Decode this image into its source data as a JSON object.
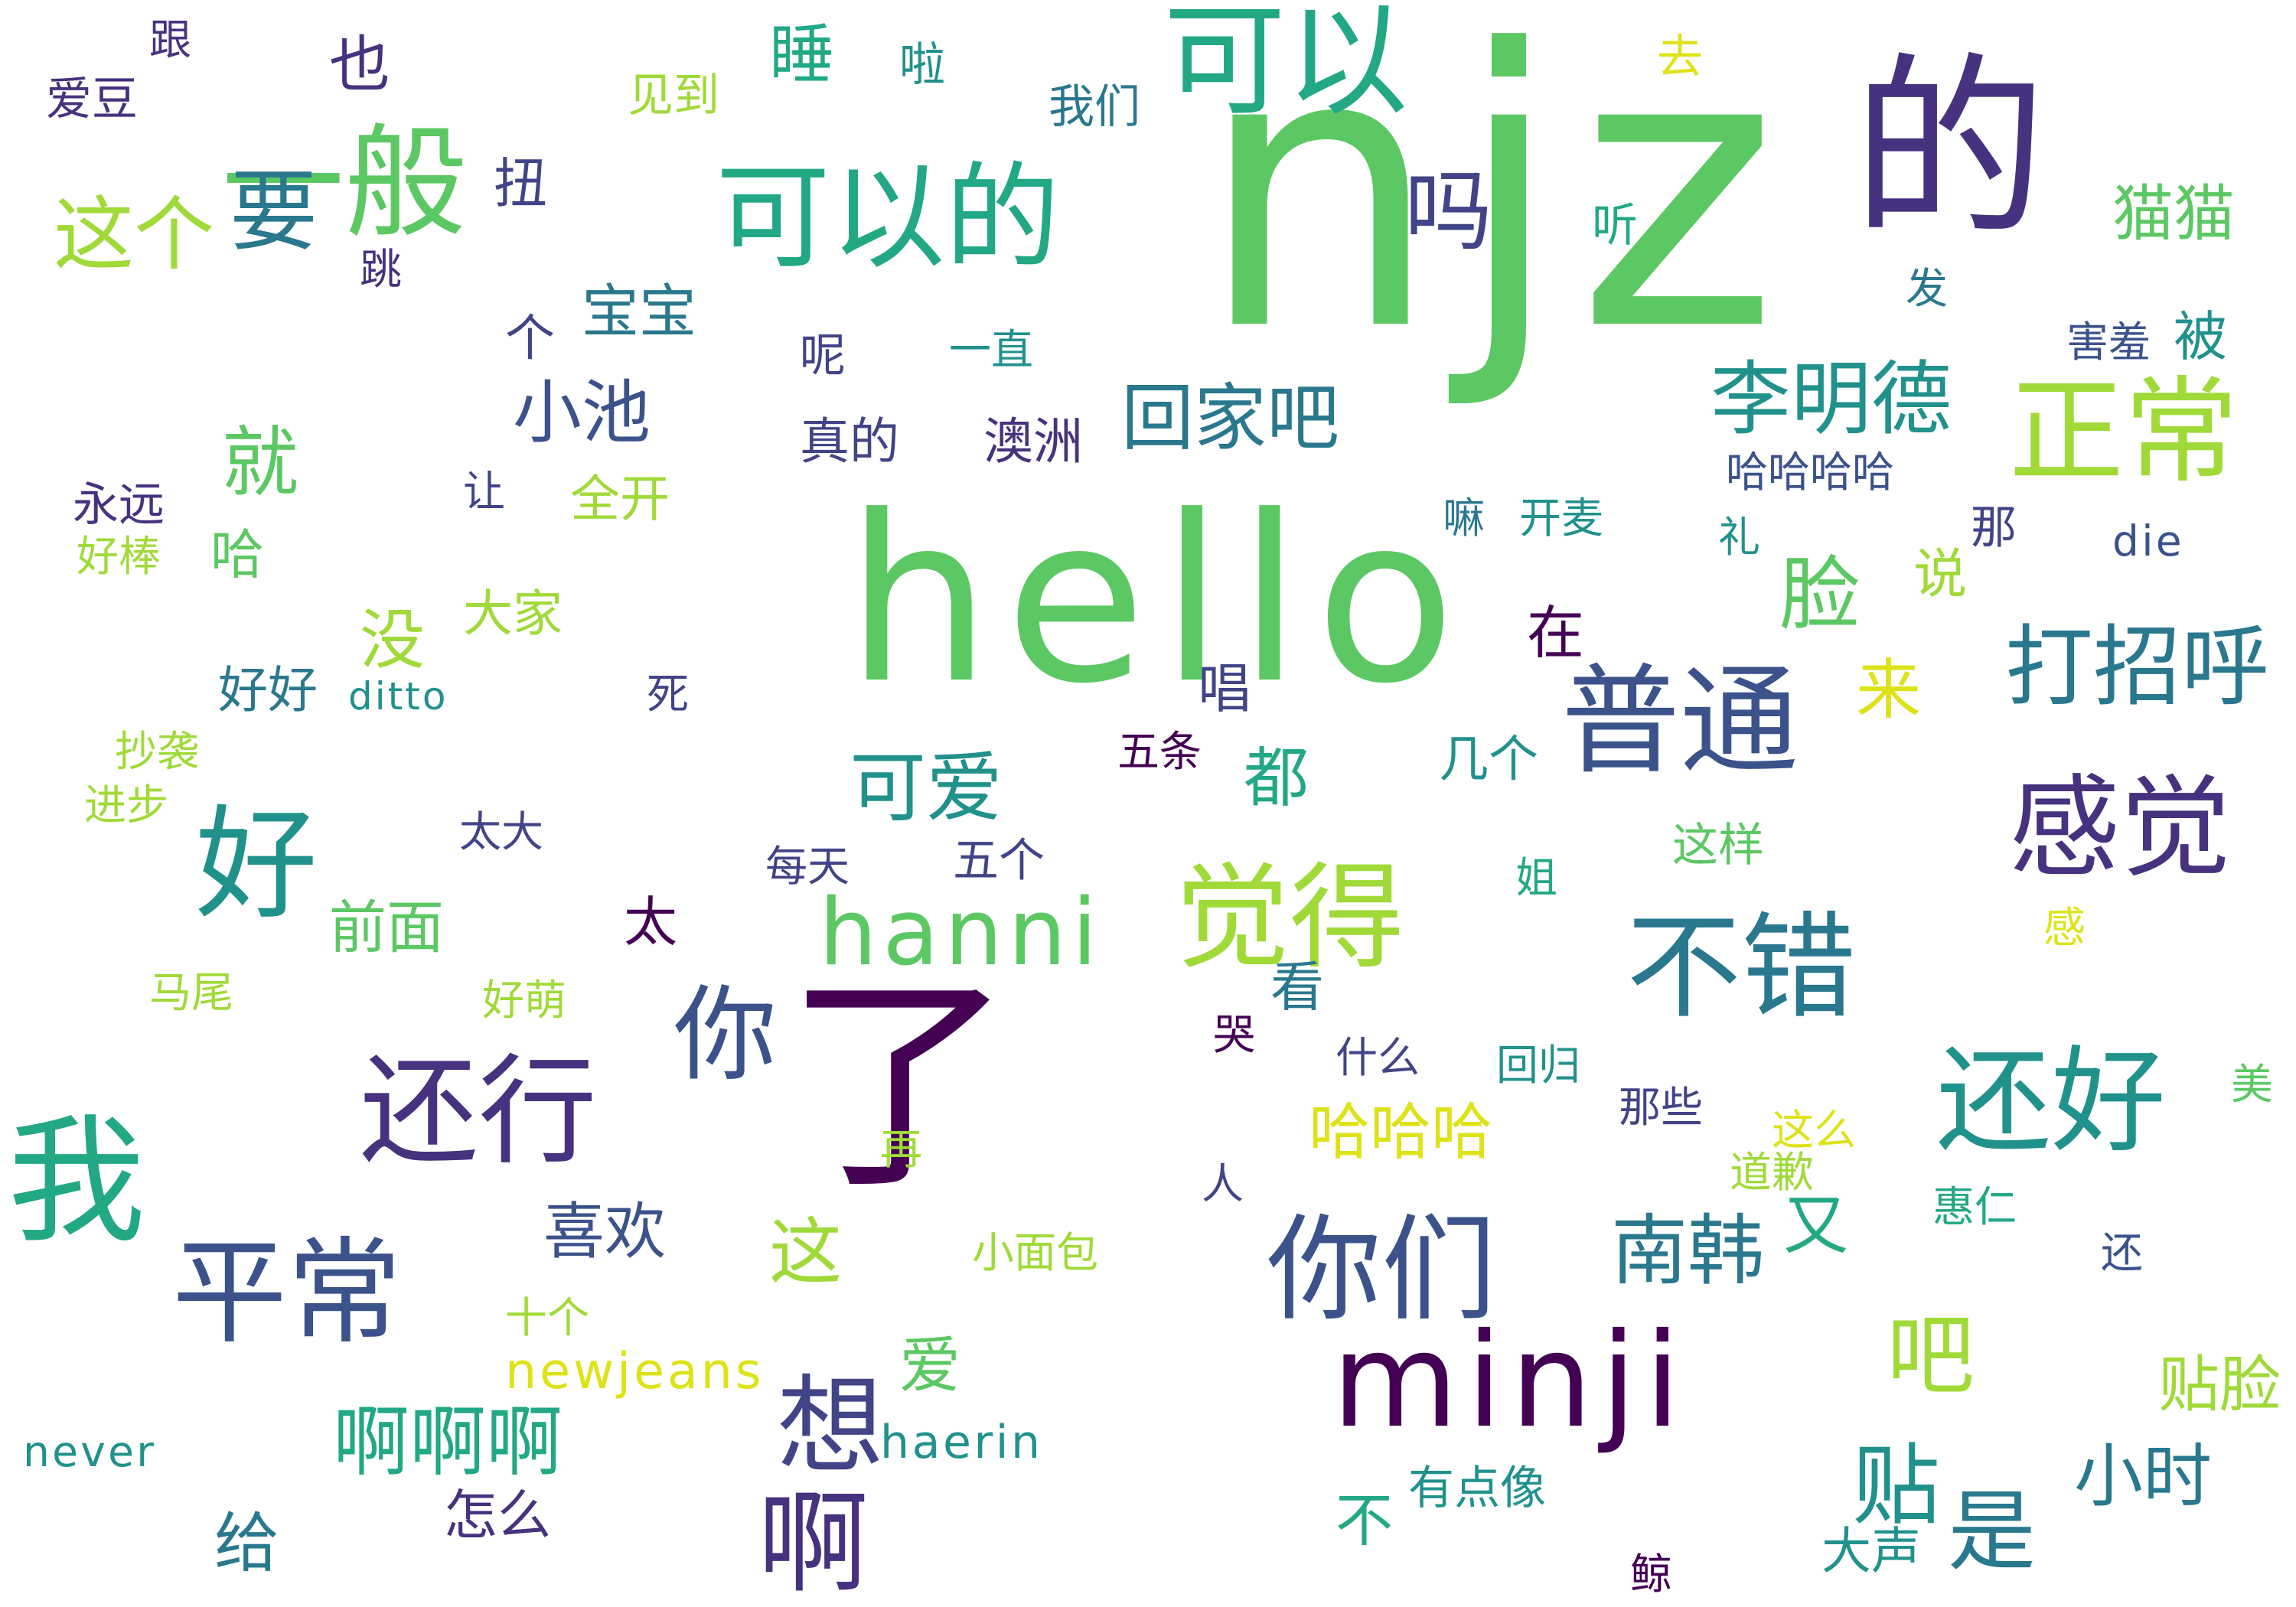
{
  "palette": {
    "yellow": "#dde318",
    "lime": "#a0da39",
    "green": "#5cc863",
    "teal_green": "#22a884",
    "teal": "#21918c",
    "steel": "#2a788e",
    "blue": "#3b528b",
    "indigo": "#414487",
    "purple": "#46327e",
    "deep_purple": "#440154"
  },
  "words": [
    {
      "text": "njz",
      "color": "#5cc863"
    },
    {
      "text": "hello",
      "color": "#5cc863"
    },
    {
      "text": "的",
      "color": "#46327e"
    },
    {
      "text": "了",
      "color": "#440154"
    },
    {
      "text": "可以",
      "color": "#22a884"
    },
    {
      "text": "一般",
      "color": "#5cc863"
    },
    {
      "text": "可以的",
      "color": "#22a884"
    },
    {
      "text": "正常",
      "color": "#a0da39"
    },
    {
      "text": "我",
      "color": "#22a884"
    },
    {
      "text": "普通",
      "color": "#3b528b"
    },
    {
      "text": "minji",
      "color": "#440154"
    },
    {
      "text": "平常",
      "color": "#3b528b"
    },
    {
      "text": "还行",
      "color": "#46327e"
    },
    {
      "text": "你们",
      "color": "#3b528b"
    },
    {
      "text": "还好",
      "color": "#21918c"
    },
    {
      "text": "觉得",
      "color": "#a0da39"
    },
    {
      "text": "感觉",
      "color": "#46327e"
    },
    {
      "text": "不错",
      "color": "#2a788e"
    },
    {
      "text": "好",
      "color": "#21918c"
    },
    {
      "text": "hanni",
      "color": "#5cc863"
    },
    {
      "text": "你",
      "color": "#3b528b"
    },
    {
      "text": "打招呼",
      "color": "#2a788e"
    },
    {
      "text": "吗",
      "color": "#414487"
    },
    {
      "text": "李明德",
      "color": "#21918c"
    },
    {
      "text": "啊",
      "color": "#46327e"
    },
    {
      "text": "想",
      "color": "#414487"
    },
    {
      "text": "贴",
      "color": "#21918c"
    },
    {
      "text": "是",
      "color": "#2a788e"
    },
    {
      "text": "吧",
      "color": "#a0da39"
    },
    {
      "text": "这个",
      "color": "#a0da39"
    },
    {
      "text": "要",
      "color": "#2a788e"
    },
    {
      "text": "回家吧",
      "color": "#2a788e"
    },
    {
      "text": "南韩",
      "color": "#2a788e"
    },
    {
      "text": "啊啊啊",
      "color": "#22a884"
    },
    {
      "text": "可爱",
      "color": "#21918c"
    },
    {
      "text": "小池",
      "color": "#3b528b"
    },
    {
      "text": "就",
      "color": "#5cc863"
    },
    {
      "text": "脸",
      "color": "#5cc863"
    },
    {
      "text": "哈哈哈",
      "color": "#dde318"
    },
    {
      "text": "猫猫",
      "color": "#5cc863"
    },
    {
      "text": "小时",
      "color": "#2a788e"
    },
    {
      "text": "贴脸",
      "color": "#a0da39"
    },
    {
      "text": "睡",
      "color": "#22a884"
    },
    {
      "text": "喜欢",
      "color": "#3b528b"
    },
    {
      "text": "宝宝",
      "color": "#2a788e"
    },
    {
      "text": "前面",
      "color": "#5cc863"
    },
    {
      "text": "这",
      "color": "#a0da39"
    },
    {
      "text": "都",
      "color": "#22a884"
    },
    {
      "text": "没",
      "color": "#a0da39"
    },
    {
      "text": "也",
      "color": "#46327e"
    },
    {
      "text": "扭",
      "color": "#414487"
    },
    {
      "text": "又",
      "color": "#22a884"
    },
    {
      "text": "来",
      "color": "#dde318"
    },
    {
      "text": "爱",
      "color": "#5cc863"
    },
    {
      "text": "给",
      "color": "#2a788e"
    },
    {
      "text": "怎么",
      "color": "#46327e"
    },
    {
      "text": "newjeans",
      "color": "#dde318"
    },
    {
      "text": "大声",
      "color": "#21918c"
    },
    {
      "text": "看",
      "color": "#2a788e"
    },
    {
      "text": "被",
      "color": "#21918c"
    },
    {
      "text": "太",
      "color": "#440154"
    },
    {
      "text": "大家",
      "color": "#a0da39"
    },
    {
      "text": "全开",
      "color": "#a0da39"
    },
    {
      "text": "好好",
      "color": "#2a788e"
    },
    {
      "text": "唱",
      "color": "#414487"
    },
    {
      "text": "哈",
      "color": "#5cc863"
    },
    {
      "text": "在",
      "color": "#440154"
    },
    {
      "text": "个",
      "color": "#414487"
    },
    {
      "text": "说",
      "color": "#a0da39"
    },
    {
      "text": "真的",
      "color": "#414487"
    },
    {
      "text": "澳洲",
      "color": "#46327e"
    },
    {
      "text": "几个",
      "color": "#21918c"
    },
    {
      "text": "五个",
      "color": "#414487"
    },
    {
      "text": "有点像",
      "color": "#21918c"
    },
    {
      "text": "不",
      "color": "#22a884"
    },
    {
      "text": "haerin",
      "color": "#21918c"
    },
    {
      "text": "啦",
      "color": "#21918c"
    },
    {
      "text": "我们",
      "color": "#2a788e"
    },
    {
      "text": "去",
      "color": "#dde318"
    },
    {
      "text": "见到",
      "color": "#a0da39"
    },
    {
      "text": "爱豆",
      "color": "#46327e"
    },
    {
      "text": "跟",
      "color": "#46327e"
    },
    {
      "text": "呢",
      "color": "#414487"
    },
    {
      "text": "一直",
      "color": "#21918c"
    },
    {
      "text": "害羞",
      "color": "#3b528b"
    },
    {
      "text": "哈哈哈哈",
      "color": "#3b528b"
    },
    {
      "text": "嘛",
      "color": "#2a788e"
    },
    {
      "text": "开麦",
      "color": "#21918c"
    },
    {
      "text": "那",
      "color": "#414487"
    },
    {
      "text": "die",
      "color": "#3b528b"
    },
    {
      "text": "礼",
      "color": "#21918c"
    },
    {
      "text": "永远",
      "color": "#46327e"
    },
    {
      "text": "好棒",
      "color": "#a0da39"
    },
    {
      "text": "让",
      "color": "#414487"
    },
    {
      "text": "发",
      "color": "#2a788e"
    },
    {
      "text": "听",
      "color": "#22a884"
    },
    {
      "text": "跳",
      "color": "#46327e"
    },
    {
      "text": "ditto",
      "color": "#21918c"
    },
    {
      "text": "死",
      "color": "#414487"
    },
    {
      "text": "抄袭",
      "color": "#a0da39"
    },
    {
      "text": "进步",
      "color": "#a0da39"
    },
    {
      "text": "五条",
      "color": "#440154"
    },
    {
      "text": "每天",
      "color": "#414487"
    },
    {
      "text": "这样",
      "color": "#5cc863"
    },
    {
      "text": "太大",
      "color": "#414487"
    },
    {
      "text": "姐",
      "color": "#22a884"
    },
    {
      "text": "感",
      "color": "#dde318"
    },
    {
      "text": "马尾",
      "color": "#a0da39"
    },
    {
      "text": "好萌",
      "color": "#a0da39"
    },
    {
      "text": "哭",
      "color": "#440154"
    },
    {
      "text": "什么",
      "color": "#414487"
    },
    {
      "text": "回归",
      "color": "#21918c"
    },
    {
      "text": "那些",
      "color": "#414487"
    },
    {
      "text": "这么",
      "color": "#dde318"
    },
    {
      "text": "美",
      "color": "#5cc863"
    },
    {
      "text": "再",
      "color": "#a0da39"
    },
    {
      "text": "人",
      "color": "#414487"
    },
    {
      "text": "道歉",
      "color": "#a0da39"
    },
    {
      "text": "惠仁",
      "color": "#22a884"
    },
    {
      "text": "还",
      "color": "#3b528b"
    },
    {
      "text": "小面包",
      "color": "#a0da39"
    },
    {
      "text": "十个",
      "color": "#a0da39"
    },
    {
      "text": "never",
      "color": "#21918c"
    },
    {
      "text": "鲸",
      "color": "#440154"
    }
  ]
}
